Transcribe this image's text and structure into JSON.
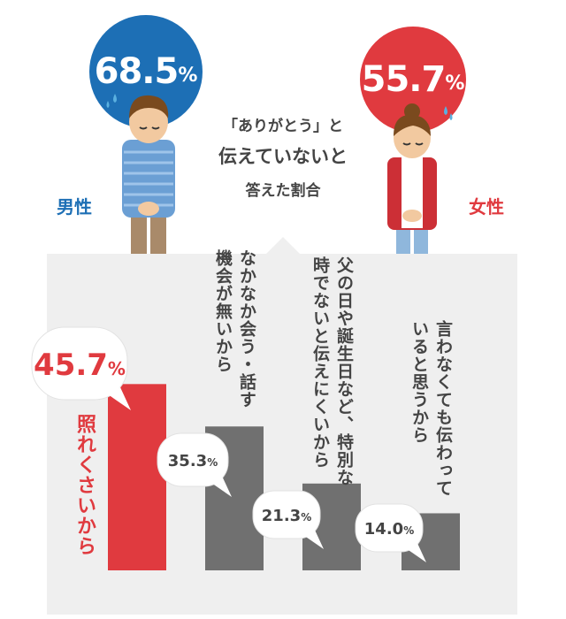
{
  "men": {
    "label": "男性",
    "value": "68.5",
    "unit": "%",
    "color": "#1d6fb5"
  },
  "women": {
    "label": "女性",
    "value": "55.7",
    "unit": "%",
    "color": "#e03a3f"
  },
  "center": {
    "line1": "「ありがとう」と",
    "line2": "伝えていないと",
    "line3": "答えた割合"
  },
  "chart_data": {
    "type": "bar",
    "categories": [
      "照れくさいから",
      "なかなか会う・話す機会が無いから",
      "父の日や誕生日など、特別な時でないと伝えにくいから",
      "言わなくても伝わっていると思うから"
    ],
    "values": [
      45.7,
      35.3,
      21.3,
      14.0
    ],
    "value_labels": [
      "45.7",
      "35.3",
      "21.3",
      "14.0"
    ],
    "unit": "%",
    "colors": [
      "#e03a3f",
      "#707070",
      "#707070",
      "#707070"
    ],
    "label_lines": [
      [
        "照れくさいから"
      ],
      [
        "なかなか会う・話す",
        "機会が無いから"
      ],
      [
        "父の日や誕生日など、特別な",
        "時でないと伝えにくいから"
      ],
      [
        "言わなくても伝わって",
        "いると思うから"
      ]
    ]
  }
}
